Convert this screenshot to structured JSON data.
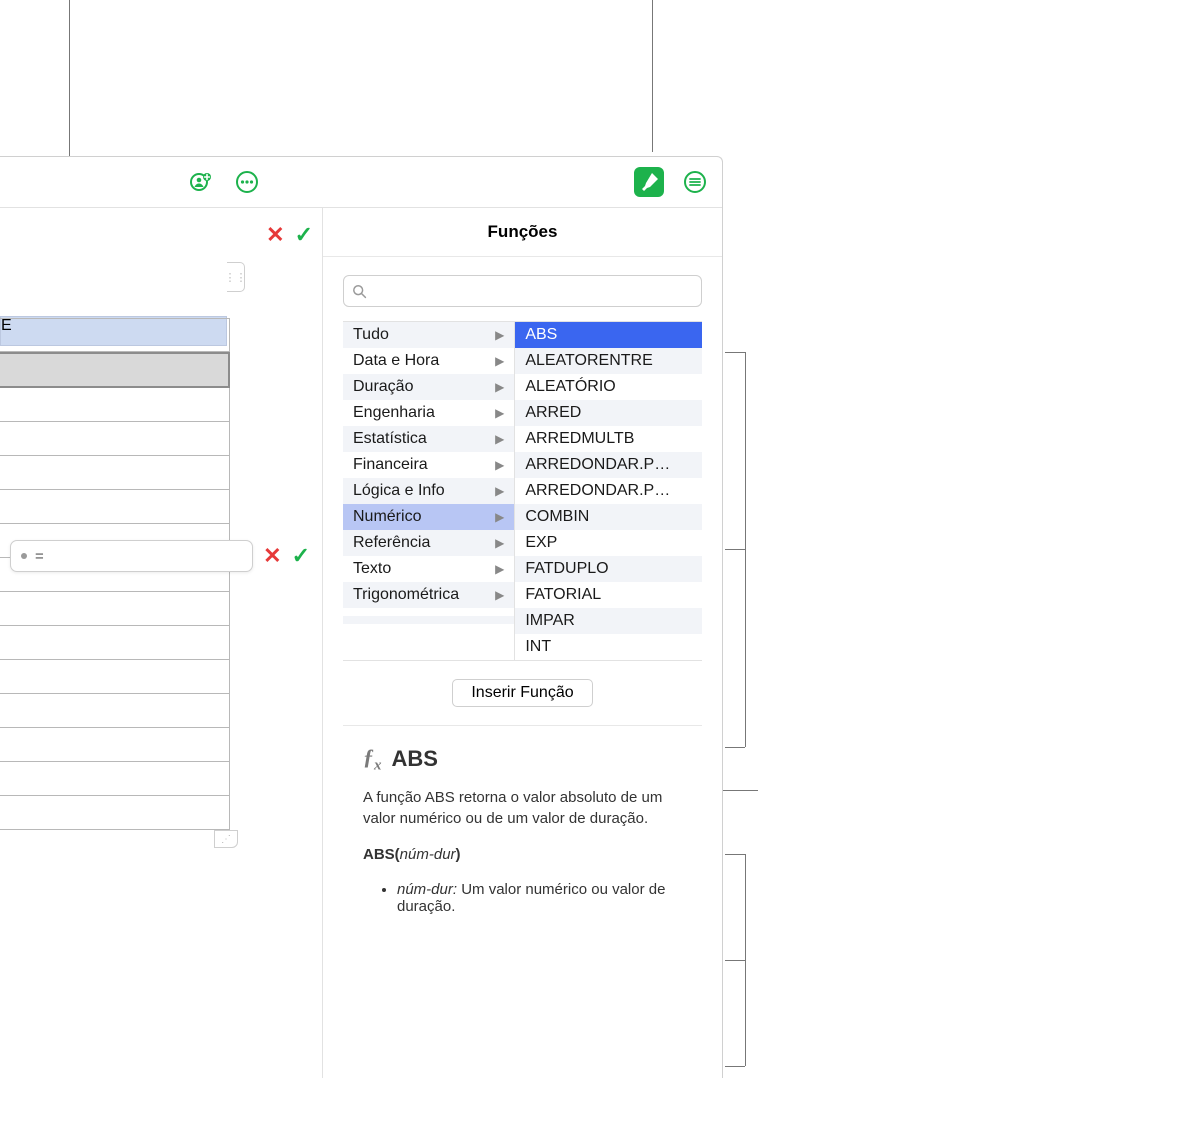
{
  "toolbar": {
    "accent_color": "#1db24c"
  },
  "panel": {
    "title": "Funções",
    "search_placeholder": "",
    "categories": [
      {
        "label": "Tudo"
      },
      {
        "label": "Data e Hora"
      },
      {
        "label": "Duração"
      },
      {
        "label": "Engenharia"
      },
      {
        "label": "Estatística"
      },
      {
        "label": "Financeira"
      },
      {
        "label": "Lógica e Info"
      },
      {
        "label": "Numérico",
        "selected": true
      },
      {
        "label": "Referência"
      },
      {
        "label": "Texto"
      },
      {
        "label": "Trigonométrica"
      },
      {
        "label": ""
      },
      {
        "label": ""
      }
    ],
    "functions": [
      {
        "label": "ABS",
        "selected": true
      },
      {
        "label": "ALEATORENTRE"
      },
      {
        "label": "ALEATÓRIO"
      },
      {
        "label": "ARRED"
      },
      {
        "label": "ARREDMULTB"
      },
      {
        "label": "ARREDONDAR.P…"
      },
      {
        "label": "ARREDONDAR.P…"
      },
      {
        "label": "COMBIN"
      },
      {
        "label": "EXP"
      },
      {
        "label": "FATDUPLO"
      },
      {
        "label": "FATORIAL"
      },
      {
        "label": "IMPAR"
      },
      {
        "label": "INT"
      }
    ],
    "insert_label": "Inserir Função",
    "detail": {
      "name": "ABS",
      "description": "A função ABS retorna o valor absoluto de um valor numérico ou de um valor de duração.",
      "signature_prefix": "ABS(",
      "signature_arg": "núm-dur",
      "signature_suffix": ")",
      "arg_name": "núm-dur:",
      "arg_desc": " Um valor numérico ou valor de duração."
    }
  },
  "sheet": {
    "column_header": "E",
    "formula_prefix": "="
  }
}
